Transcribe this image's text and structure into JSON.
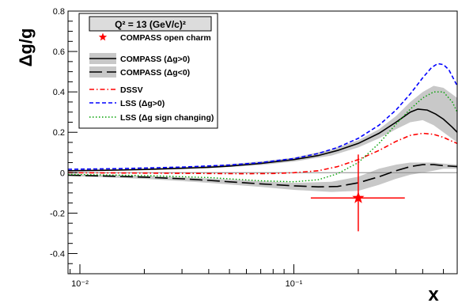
{
  "chart_data": {
    "type": "line",
    "title": "",
    "xlabel": "x",
    "ylabel": "Δg/g",
    "xscale": "log",
    "xlim": [
      0.0088,
      0.58
    ],
    "ylim": [
      -0.5,
      0.8
    ],
    "grid": false,
    "legend_placement": "top-left",
    "legend_header": "Q² = 13 (GeV/c)²",
    "x_tick_labels": [
      "10⁻²",
      "10⁻¹"
    ],
    "y_tick_labels": [
      "-0.4",
      "-0.2",
      "0",
      "0.2",
      "0.4",
      "0.6",
      "0.8"
    ],
    "colors": {
      "compass": "#000000",
      "band": "#c8c8c8",
      "dssv": "#ff0000",
      "lss_pos": "#0000ff",
      "lss_sign": "#00a000",
      "open_charm": "#ff0000"
    },
    "bands": [
      {
        "name": "COMPASS (Δg>0)",
        "x": [
          0.0088,
          0.02,
          0.04,
          0.07,
          0.1,
          0.15,
          0.2,
          0.25,
          0.3,
          0.35,
          0.4,
          0.45,
          0.5,
          0.58
        ],
        "low": [
          0.007,
          0.012,
          0.022,
          0.038,
          0.055,
          0.085,
          0.125,
          0.17,
          0.215,
          0.25,
          0.26,
          0.235,
          0.2,
          0.15
        ],
        "high": [
          0.013,
          0.02,
          0.034,
          0.056,
          0.075,
          0.115,
          0.16,
          0.215,
          0.28,
          0.35,
          0.4,
          0.43,
          0.42,
          0.37
        ]
      },
      {
        "name": "COMPASS (Δg<0)",
        "x": [
          0.0088,
          0.02,
          0.04,
          0.07,
          0.1,
          0.15,
          0.2,
          0.25,
          0.3,
          0.35,
          0.4,
          0.45,
          0.5,
          0.58
        ],
        "low": [
          -0.016,
          -0.03,
          -0.05,
          -0.07,
          -0.085,
          -0.095,
          -0.09,
          -0.06,
          -0.03,
          -0.01,
          0.0,
          0.01,
          0.02,
          0.02
        ],
        "high": [
          -0.008,
          -0.015,
          -0.028,
          -0.042,
          -0.05,
          -0.045,
          -0.02,
          0.02,
          0.04,
          0.05,
          0.05,
          0.05,
          0.045,
          0.04
        ]
      }
    ],
    "series": [
      {
        "name": "COMPASS (Δg>0)",
        "style": "solid",
        "color": "#000000",
        "x": [
          0.0088,
          0.015,
          0.02,
          0.03,
          0.04,
          0.05,
          0.07,
          0.1,
          0.13,
          0.16,
          0.2,
          0.25,
          0.3,
          0.35,
          0.38,
          0.42,
          0.46,
          0.5,
          0.55,
          0.58
        ],
        "y": [
          0.01,
          0.013,
          0.016,
          0.022,
          0.027,
          0.033,
          0.046,
          0.065,
          0.085,
          0.11,
          0.145,
          0.195,
          0.25,
          0.3,
          0.315,
          0.31,
          0.29,
          0.265,
          0.225,
          0.2
        ]
      },
      {
        "name": "COMPASS (Δg<0)",
        "style": "longdash",
        "color": "#000000",
        "x": [
          0.0088,
          0.015,
          0.02,
          0.03,
          0.04,
          0.05,
          0.07,
          0.1,
          0.13,
          0.16,
          0.2,
          0.25,
          0.3,
          0.35,
          0.4,
          0.45,
          0.5,
          0.58
        ],
        "y": [
          -0.012,
          -0.018,
          -0.022,
          -0.03,
          -0.038,
          -0.045,
          -0.055,
          -0.065,
          -0.07,
          -0.068,
          -0.05,
          -0.02,
          0.01,
          0.03,
          0.04,
          0.04,
          0.035,
          0.03
        ]
      },
      {
        "name": "DSSV",
        "style": "dashdot",
        "color": "#ff0000",
        "x": [
          0.0088,
          0.02,
          0.04,
          0.06,
          0.08,
          0.1,
          0.13,
          0.16,
          0.2,
          0.25,
          0.3,
          0.35,
          0.4,
          0.45,
          0.5,
          0.55,
          0.58
        ],
        "y": [
          0.0,
          -0.002,
          -0.004,
          -0.005,
          -0.004,
          0.0,
          0.01,
          0.03,
          0.065,
          0.11,
          0.155,
          0.185,
          0.195,
          0.19,
          0.175,
          0.155,
          0.145
        ]
      },
      {
        "name": "LSS (Δg>0)",
        "style": "dashed",
        "color": "#0000ff",
        "x": [
          0.0088,
          0.015,
          0.02,
          0.03,
          0.05,
          0.07,
          0.1,
          0.13,
          0.16,
          0.2,
          0.25,
          0.3,
          0.35,
          0.4,
          0.44,
          0.47,
          0.5,
          0.53,
          0.58
        ],
        "y": [
          0.017,
          0.02,
          0.023,
          0.028,
          0.038,
          0.05,
          0.07,
          0.095,
          0.125,
          0.17,
          0.235,
          0.31,
          0.39,
          0.47,
          0.52,
          0.54,
          0.535,
          0.51,
          0.43
        ]
      },
      {
        "name": "LSS (Δg sign changing)",
        "style": "dotted",
        "color": "#00a000",
        "x": [
          0.0088,
          0.02,
          0.04,
          0.07,
          0.1,
          0.13,
          0.16,
          0.2,
          0.25,
          0.3,
          0.35,
          0.4,
          0.45,
          0.5,
          0.55,
          0.58
        ],
        "y": [
          -0.008,
          -0.014,
          -0.024,
          -0.04,
          -0.045,
          -0.035,
          -0.005,
          0.05,
          0.145,
          0.24,
          0.315,
          0.37,
          0.4,
          0.4,
          0.35,
          0.3
        ]
      }
    ],
    "points": [
      {
        "name": "COMPASS open charm",
        "x": 0.2,
        "y": -0.125,
        "x_low": 0.12,
        "x_high": 0.33,
        "y_low": -0.29,
        "y_high": 0.09,
        "color": "#ff0000"
      }
    ]
  },
  "legend": {
    "header": "Q² = 13 (GeV/c)²",
    "items": [
      {
        "label": "COMPASS open charm"
      },
      {
        "label": "COMPASS (Δg>0)"
      },
      {
        "label": "COMPASS (Δg<0)"
      },
      {
        "label": "DSSV"
      },
      {
        "label": "LSS (Δg>0)"
      },
      {
        "label": "LSS (Δg sign changing)"
      }
    ]
  }
}
